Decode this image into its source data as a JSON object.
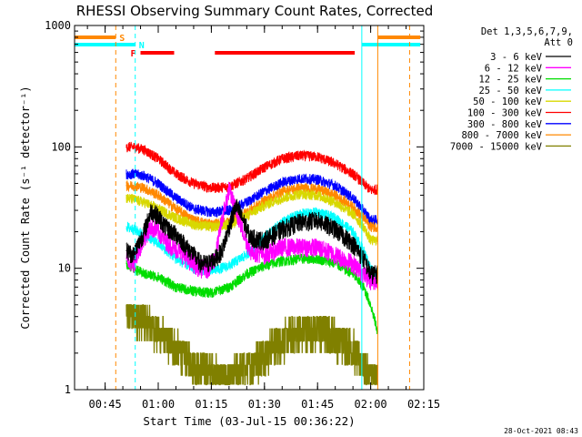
{
  "chart_data": {
    "type": "line",
    "title": "RHESSI Observing Summary Count Rates, Corrected",
    "xlabel": "Start Time (03-Jul-15 00:36:22)",
    "ylabel": "Corrected Count Rate (s⁻¹ detector⁻¹)",
    "yscale": "log",
    "ylim": [
      1,
      1000
    ],
    "xlim": [
      "00:36:22",
      "02:15:00"
    ],
    "x_ticks": [
      "00:45",
      "01:00",
      "01:15",
      "01:30",
      "01:45",
      "02:00",
      "02:15"
    ],
    "y_ticks": [
      1,
      10,
      100,
      1000
    ],
    "y_tick_labels": [
      "1",
      "10",
      "100",
      "1000"
    ],
    "legend": {
      "position": "right",
      "header": [
        "Det 1,3,5,6,7,9,",
        "Att 0"
      ]
    },
    "series": [
      {
        "name": "3 - 6 keV",
        "color": "#000000",
        "x": [
          "00:51",
          "00:53",
          "00:56",
          "00:58",
          "01:00",
          "01:02",
          "01:04",
          "01:06",
          "01:08",
          "01:10",
          "01:12",
          "01:14",
          "01:16",
          "01:18",
          "01:20",
          "01:22",
          "01:24",
          "01:26",
          "01:30",
          "01:35",
          "01:40",
          "01:45",
          "01:50",
          "01:55",
          "01:58",
          "02:00",
          "02:02"
        ],
        "y": [
          14,
          13,
          20,
          30,
          27,
          22,
          20,
          18,
          15,
          13,
          11,
          11,
          12,
          14,
          22,
          33,
          25,
          18,
          17,
          21,
          24,
          25,
          21,
          16,
          12,
          9,
          9
        ]
      },
      {
        "name": "6 - 12 keV",
        "color": "#ff00ff",
        "x": [
          "00:51",
          "00:53",
          "00:56",
          "00:58",
          "01:00",
          "01:02",
          "01:04",
          "01:06",
          "01:08",
          "01:10",
          "01:12",
          "01:14",
          "01:16",
          "01:18",
          "01:20",
          "01:22",
          "01:24",
          "01:26",
          "01:30",
          "01:35",
          "01:40",
          "01:45",
          "01:50",
          "01:55",
          "01:58",
          "02:00",
          "02:02"
        ],
        "y": [
          12,
          11,
          18,
          22,
          20,
          17,
          15,
          14,
          12,
          11,
          10,
          10,
          12,
          25,
          45,
          30,
          20,
          14,
          13,
          15,
          15,
          15,
          13,
          11,
          9,
          8,
          8
        ]
      },
      {
        "name": "12 - 25 keV",
        "color": "#00dd00",
        "x": [
          "00:51",
          "00:53",
          "00:56",
          "01:00",
          "01:05",
          "01:10",
          "01:15",
          "01:20",
          "01:25",
          "01:30",
          "01:35",
          "01:40",
          "01:45",
          "01:50",
          "01:55",
          "01:58",
          "02:00",
          "02:02"
        ],
        "y": [
          11,
          10,
          9,
          8.5,
          7,
          6.5,
          6.3,
          7,
          9,
          10.5,
          11.5,
          12,
          12,
          11,
          9,
          7,
          5,
          3
        ]
      },
      {
        "name": "25 - 50 keV",
        "color": "#00ffff",
        "x": [
          "00:51",
          "00:53",
          "00:56",
          "01:00",
          "01:05",
          "01:10",
          "01:15",
          "01:20",
          "01:25",
          "01:30",
          "01:35",
          "01:40",
          "01:45",
          "01:50",
          "01:55",
          "01:58",
          "02:00",
          "02:02"
        ],
        "y": [
          22,
          21,
          19,
          16,
          12,
          10,
          9.5,
          10.5,
          13,
          18,
          24,
          28,
          29,
          26,
          20,
          14,
          10,
          9
        ]
      },
      {
        "name": "50 - 100 keV",
        "color": "#d8d800",
        "x": [
          "00:51",
          "00:53",
          "00:56",
          "01:00",
          "01:05",
          "01:10",
          "01:15",
          "01:20",
          "01:25",
          "01:30",
          "01:35",
          "01:40",
          "01:45",
          "01:50",
          "01:55",
          "01:58",
          "02:00",
          "02:02"
        ],
        "y": [
          38,
          37,
          35,
          31,
          26,
          23,
          22,
          23,
          27,
          33,
          38,
          41,
          40,
          35,
          28,
          22,
          17,
          17
        ]
      },
      {
        "name": "100 - 300 keV",
        "color": "#ff0000",
        "x": [
          "00:51",
          "00:53",
          "00:56",
          "01:00",
          "01:05",
          "01:10",
          "01:15",
          "01:20",
          "01:25",
          "01:30",
          "01:35",
          "01:40",
          "01:45",
          "01:50",
          "01:55",
          "01:58",
          "02:00",
          "02:02"
        ],
        "y": [
          100,
          100,
          95,
          80,
          60,
          50,
          46,
          47,
          55,
          68,
          80,
          85,
          83,
          73,
          60,
          50,
          44,
          45
        ]
      },
      {
        "name": "300 - 800 keV",
        "color": "#0000ff",
        "x": [
          "00:51",
          "00:53",
          "00:56",
          "01:00",
          "01:05",
          "01:10",
          "01:15",
          "01:20",
          "01:25",
          "01:30",
          "01:35",
          "01:40",
          "01:45",
          "01:50",
          "01:55",
          "01:58",
          "02:00",
          "02:02"
        ],
        "y": [
          60,
          60,
          58,
          50,
          38,
          31,
          29,
          30,
          35,
          43,
          51,
          55,
          54,
          48,
          38,
          30,
          25,
          25
        ]
      },
      {
        "name": "800 - 7000 keV",
        "color": "#ff8800",
        "x": [
          "00:51",
          "00:53",
          "00:56",
          "01:00",
          "01:05",
          "01:10",
          "01:15",
          "01:20",
          "01:25",
          "01:30",
          "01:35",
          "01:40",
          "01:45",
          "01:50",
          "01:55",
          "01:58",
          "02:00",
          "02:02"
        ],
        "y": [
          48,
          48,
          46,
          40,
          31,
          25,
          23,
          24,
          29,
          36,
          43,
          46,
          45,
          40,
          32,
          26,
          22,
          22
        ]
      },
      {
        "name": "7000 - 15000 keV",
        "color": "#808000",
        "x": [
          "00:51",
          "00:53",
          "00:56",
          "01:00",
          "01:05",
          "01:10",
          "01:15",
          "01:20",
          "01:25",
          "01:30",
          "01:35",
          "01:40",
          "01:45",
          "01:50",
          "01:55",
          "01:58",
          "02:00",
          "02:02"
        ],
        "y": [
          4.5,
          4.2,
          3.8,
          3,
          2.2,
          1.7,
          1.4,
          1.3,
          1.5,
          2,
          2.6,
          3,
          3.2,
          2.8,
          2.2,
          1.6,
          1.3,
          1.2
        ]
      }
    ],
    "markers": {
      "orange_vertical_dashed": [
        "00:48",
        "02:11"
      ],
      "cyan_vertical_dashed": [
        "00:53:30"
      ],
      "cyan_vertical_solid": [
        "01:57:30"
      ],
      "orange_vertical_solid": [
        "02:02"
      ]
    },
    "flag_bars": [
      {
        "label": "S",
        "color": "#ff8800",
        "segments": [
          [
            "00:36:22",
            "00:48"
          ],
          [
            "02:02",
            "02:14"
          ]
        ]
      },
      {
        "label": "N",
        "color": "#00ffff",
        "segments": [
          [
            "00:36:22",
            "00:53:30"
          ],
          [
            "01:57:30",
            "02:14"
          ]
        ]
      },
      {
        "label": "F",
        "color": "#ff0000",
        "segments": [
          [
            "00:55",
            "01:04:30"
          ],
          [
            "01:16",
            "01:55:30"
          ]
        ]
      }
    ],
    "timestamp": "28-Oct-2021 08:43"
  }
}
